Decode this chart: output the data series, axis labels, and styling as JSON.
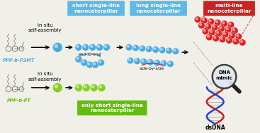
{
  "bg_color": "#f0efe8",
  "blue_color": "#4aaae0",
  "red_color": "#dd2222",
  "green_color": "#88cc22",
  "box_blue_bg": "#5bbae8",
  "box_red_bg": "#cc2222",
  "box_green_bg": "#66bb11",
  "label_blue": "#4aaae0",
  "label_green": "#66bb00",
  "title_short": "short single-line\nnanocaterpillar",
  "title_long": "long single-line\nnanocaterpillar",
  "title_multi": "multi-line\nnanocaterpillar",
  "title_only_short": "only short single-line\nnanocaterpillar",
  "label_PPP_P3MT": "PPP-b-P3MT",
  "label_PPP_PT": "PPP-b-PT",
  "label_end_to_end": "end-to-end",
  "label_side_by_side": "side-by-side",
  "label_in_situ_1": "in situ\nself-assembly",
  "label_in_situ_2": "in situ\nself-assembly",
  "label_dsDNA": "dsDNA",
  "label_DNA_mimic": "DNA\nmimic"
}
